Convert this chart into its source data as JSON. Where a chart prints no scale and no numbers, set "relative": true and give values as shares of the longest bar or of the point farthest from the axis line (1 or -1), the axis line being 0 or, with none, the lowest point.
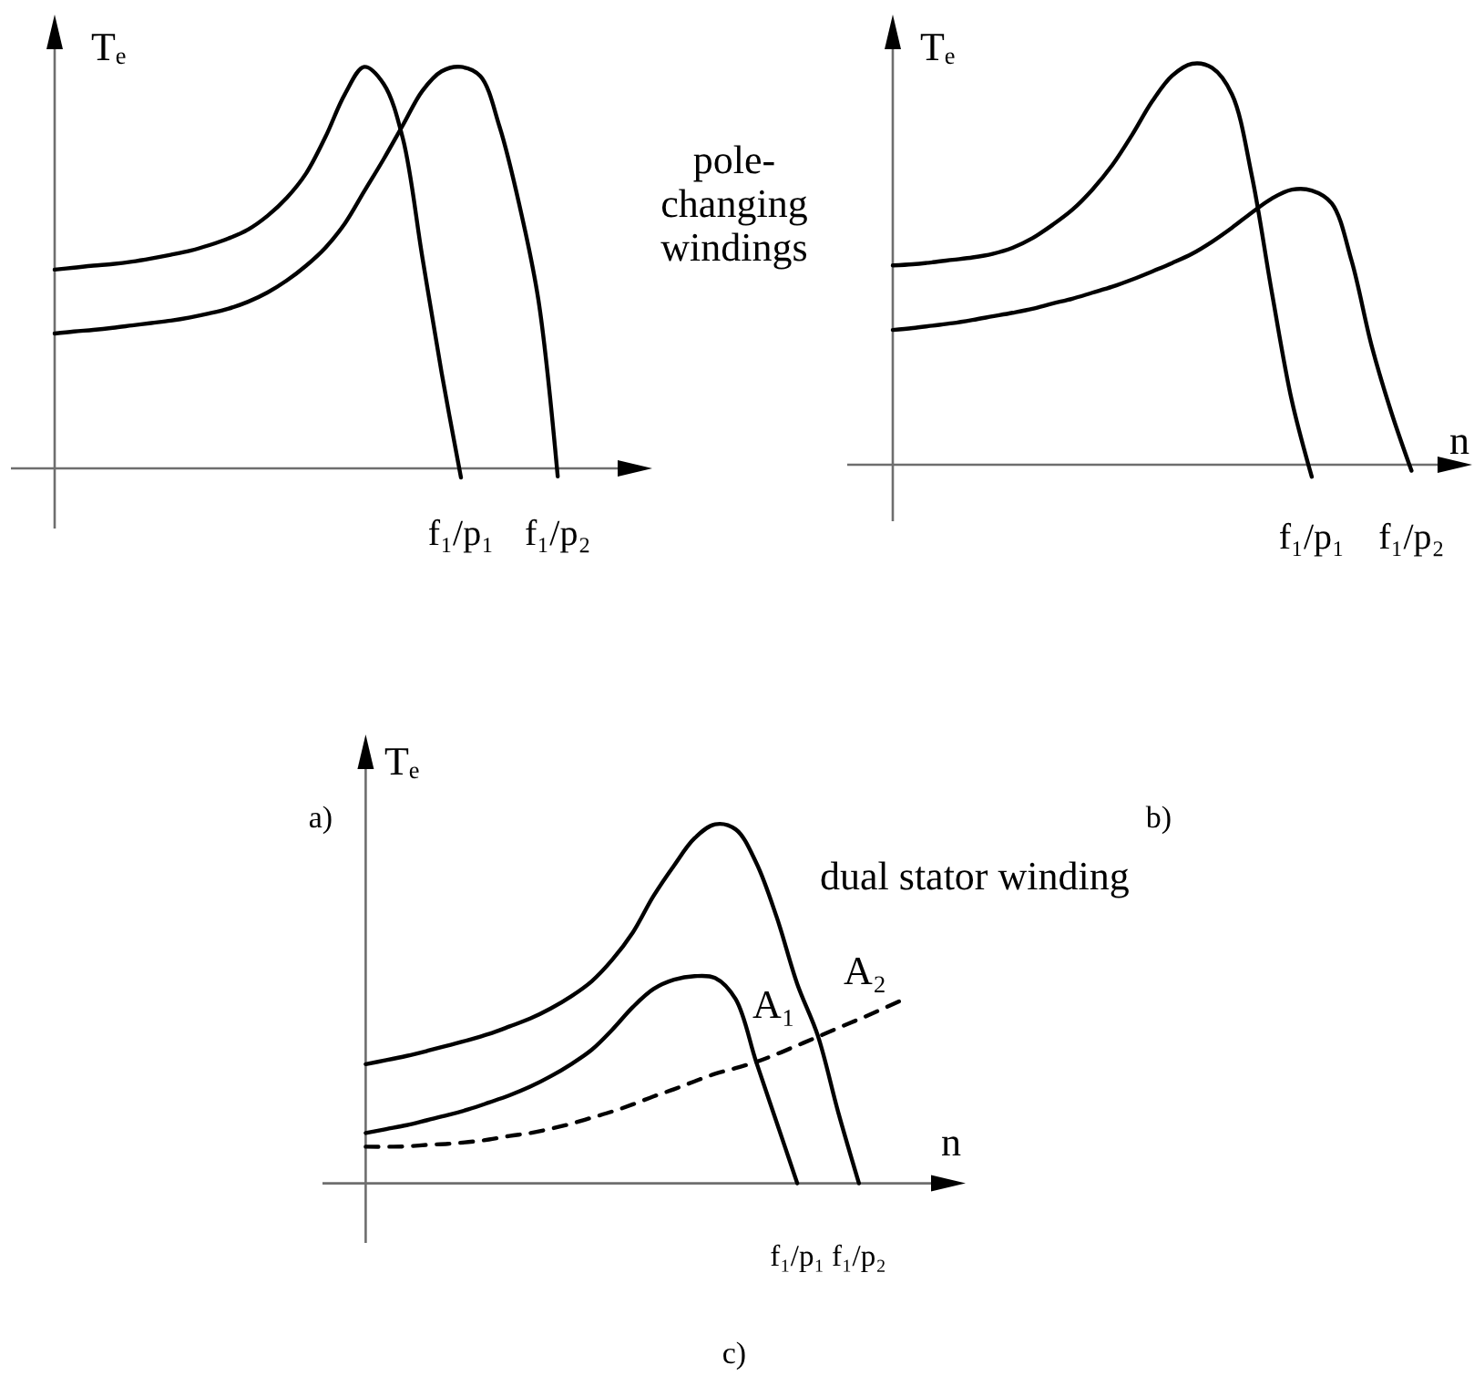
{
  "chart_data": [
    {
      "type": "line",
      "relative": true,
      "ylabel": "Tₑ",
      "categories": [
        null,
        null,
        null,
        null,
        null,
        null,
        null,
        null,
        null,
        null,
        null,
        null,
        null,
        null,
        null,
        null,
        null,
        null,
        null,
        null,
        null,
        "f₁/p₁",
        null,
        null,
        null,
        null,
        "f₁/p₂"
      ],
      "series": [
        {
          "color": "#000000",
          "values": [
            0.495,
            0.5,
            0.505,
            0.509,
            0.515,
            0.523,
            0.532,
            0.542,
            0.556,
            0.573,
            0.595,
            0.629,
            0.674,
            0.735,
            0.826,
            0.932,
            1,
            0.958,
            0.821,
            0.527,
            0.238,
            -0.023,
            null,
            null,
            null,
            null,
            null
          ]
        },
        {
          "color": "#000000",
          "values": [
            0.336,
            0.341,
            0.345,
            0.35,
            0.356,
            0.362,
            0.368,
            0.376,
            0.386,
            0.398,
            0.415,
            0.438,
            0.468,
            0.505,
            0.55,
            0.61,
            0.69,
            0.77,
            0.855,
            0.94,
            0.989,
            1,
            0.977,
            0.85,
            0.66,
            0.42,
            -0.02
          ]
        }
      ],
      "annotations": [
        "pole-changing windings",
        "a)"
      ]
    },
    {
      "type": "line",
      "relative": true,
      "xlabel": "n",
      "ylabel": "Tₑ",
      "categories": [
        null,
        null,
        null,
        null,
        null,
        null,
        null,
        null,
        null,
        null,
        null,
        null,
        null,
        null,
        null,
        null,
        null,
        null,
        null,
        null,
        null,
        "f₁/p₁",
        null,
        null,
        null,
        null,
        "f₁/p₂"
      ],
      "series": [
        {
          "color": "#000000",
          "values": [
            0.497,
            0.5,
            0.505,
            0.511,
            0.517,
            0.526,
            0.541,
            0.565,
            0.598,
            0.636,
            0.686,
            0.747,
            0.823,
            0.906,
            0.97,
            1,
            0.99,
            0.924,
            0.72,
            0.43,
            0.16,
            -0.03,
            null,
            null,
            null,
            null,
            null
          ]
        },
        {
          "color": "#000000",
          "values": [
            0.336,
            0.341,
            0.347,
            0.353,
            0.361,
            0.37,
            0.379,
            0.389,
            0.402,
            0.414,
            0.429,
            0.444,
            0.462,
            0.482,
            0.503,
            0.526,
            0.556,
            0.591,
            0.629,
            0.664,
            0.686,
            0.684,
            0.652,
            0.508,
            0.297,
            0.129,
            -0.015
          ]
        }
      ],
      "annotations": [
        "b)"
      ]
    },
    {
      "type": "line",
      "relative": true,
      "xlabel": "n",
      "ylabel": "Tₑ",
      "categories": [
        null,
        null,
        null,
        null,
        null,
        null,
        null,
        null,
        null,
        null,
        null,
        null,
        null,
        null,
        null,
        null,
        null,
        null,
        null,
        null,
        null,
        "f₁/p₁",
        null,
        null,
        "f₁/p₂",
        null,
        null
      ],
      "series": [
        {
          "color": "#000000",
          "values": [
            0.332,
            0.343,
            0.355,
            0.369,
            0.384,
            0.399,
            0.416,
            0.437,
            0.459,
            0.487,
            0.521,
            0.563,
            0.623,
            0.699,
            0.8,
            0.885,
            0.961,
            1,
            0.986,
            0.893,
            0.741,
            0.555,
            0.411,
            0.196,
            0,
            null,
            null
          ]
        },
        {
          "color": "#000000",
          "values": [
            0.14,
            0.151,
            0.162,
            0.176,
            0.19,
            0.206,
            0.225,
            0.245,
            0.269,
            0.298,
            0.332,
            0.372,
            0.428,
            0.491,
            0.541,
            0.567,
            0.577,
            0.572,
            0.513,
            0.338,
            0.169,
            0,
            null,
            null,
            null,
            null,
            null
          ]
        },
        {
          "color": "#000000",
          "line_style": "dashed",
          "values": [
            0.102,
            0.102,
            0.103,
            0.107,
            0.11,
            0.115,
            0.122,
            0.132,
            0.14,
            0.152,
            0.166,
            0.183,
            0.2,
            0.22,
            0.242,
            0.262,
            0.284,
            0.305,
            0.321,
            0.338,
            0.36,
            0.384,
            0.408,
            0.433,
            0.457,
            0.482,
            0.508
          ]
        }
      ],
      "annotations": [
        "dual stator winding",
        {
          "text": "A₁",
          "y": 0.338
        },
        "A₂",
        "c)"
      ]
    }
  ]
}
